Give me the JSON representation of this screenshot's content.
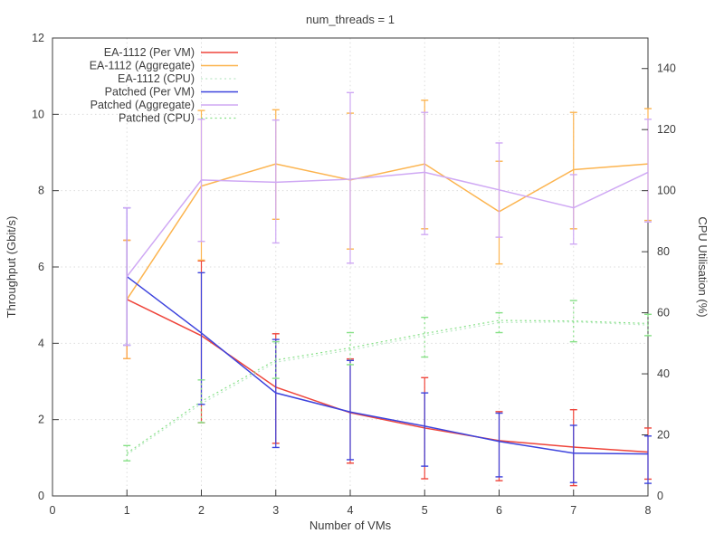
{
  "chart_data": {
    "type": "line",
    "title": "num_threads = 1",
    "xlabel": "Number of VMs",
    "ylabel": "Throughput (Gbit/s)",
    "y2label": "CPU Utilisation (%)",
    "xlim": [
      0,
      8
    ],
    "ylim": [
      0,
      12
    ],
    "y2lim": [
      0,
      150
    ],
    "xticks": [
      0,
      1,
      2,
      3,
      4,
      5,
      6,
      7,
      8
    ],
    "yticks": [
      0,
      2,
      4,
      6,
      8,
      10,
      12
    ],
    "y2ticks": [
      0,
      20,
      40,
      60,
      80,
      100,
      120,
      140
    ],
    "grid": true,
    "legend_position": "top-left",
    "x": [
      1,
      2,
      3,
      4,
      5,
      6,
      7,
      8
    ],
    "series": [
      {
        "name": "EA-1112 (Per VM)",
        "axis": "y1",
        "style": "solid",
        "color": "#ef453b",
        "values": [
          5.15,
          4.2,
          2.85,
          2.18,
          1.78,
          1.45,
          1.28,
          1.15
        ],
        "err_lo": [
          3.6,
          1.92,
          1.38,
          0.86,
          0.45,
          0.4,
          0.27,
          0.44
        ],
        "err_hi": [
          6.7,
          6.16,
          4.25,
          3.59,
          3.1,
          2.21,
          2.26,
          1.78
        ]
      },
      {
        "name": "EA-1112 (Aggregate)",
        "axis": "y1",
        "style": "solid",
        "color": "#fcb44f",
        "values": [
          5.15,
          8.12,
          8.7,
          8.28,
          8.7,
          7.45,
          8.55,
          8.7
        ],
        "err_lo": [
          3.6,
          6.18,
          7.25,
          6.47,
          7.0,
          6.08,
          7.0,
          7.22
        ],
        "err_hi": [
          6.7,
          10.1,
          10.12,
          10.03,
          10.37,
          8.77,
          10.05,
          10.15
        ]
      },
      {
        "name": "EA-1112 (CPU)",
        "axis": "y2",
        "style": "dotted",
        "color": "#bce8c6",
        "values": [
          13.5,
          30.2,
          43.8,
          47.8,
          52.5,
          56.8,
          57.0,
          56.0
        ]
      },
      {
        "name": "Patched (Per VM)",
        "axis": "y1",
        "style": "solid",
        "color": "#3d43dd",
        "values": [
          5.75,
          4.27,
          2.7,
          2.2,
          1.83,
          1.43,
          1.12,
          1.1
        ],
        "err_lo": [
          3.95,
          2.4,
          1.27,
          0.95,
          0.78,
          0.5,
          0.35,
          0.33
        ],
        "err_hi": [
          7.55,
          5.85,
          4.1,
          3.55,
          2.7,
          2.17,
          1.85,
          1.57
        ]
      },
      {
        "name": "Patched (Aggregate)",
        "axis": "y1",
        "style": "solid",
        "color": "#cfa8f4",
        "values": [
          5.75,
          8.28,
          8.22,
          8.3,
          8.48,
          8.02,
          7.55,
          8.48
        ],
        "err_lo": [
          3.95,
          6.67,
          6.63,
          6.1,
          6.85,
          6.78,
          6.6,
          7.18
        ],
        "err_hi": [
          7.55,
          9.87,
          9.85,
          10.57,
          10.05,
          9.25,
          8.42,
          9.87
        ]
      },
      {
        "name": "Patched (CPU)",
        "axis": "y2",
        "style": "dotted",
        "color": "#86e086",
        "values": [
          14.0,
          31.0,
          44.5,
          48.5,
          53.2,
          57.5,
          57.3,
          56.5
        ],
        "err_lo": [
          11.5,
          24.0,
          38.5,
          43.0,
          45.5,
          53.5,
          50.5,
          52.5
        ],
        "err_hi": [
          16.5,
          38.0,
          50.5,
          53.5,
          58.5,
          60.0,
          64.0,
          59.5
        ]
      }
    ],
    "colors": {
      "grid": "#dcdcdc",
      "axis": "#3c3c3c",
      "text": "#3c3c3c",
      "background": "#ffffff"
    }
  }
}
